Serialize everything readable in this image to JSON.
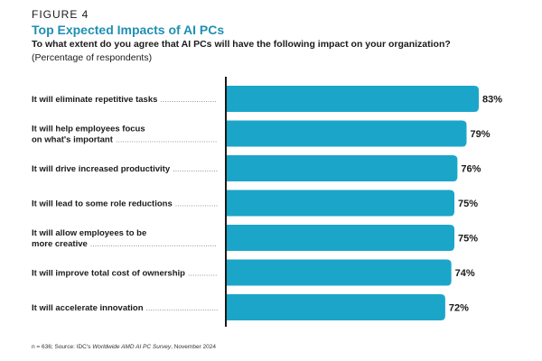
{
  "header": {
    "figure_label": "FIGURE 4",
    "title": "Top Expected Impacts of AI PCs",
    "subtitle": "To what extent do you agree that AI PCs will have the following impact on your organization?",
    "unit_note": "(Percentage of respondents)"
  },
  "footnote": {
    "prefix": "n = 636; Source: IDC's ",
    "survey": "Worldwide AMD AI PC Survey",
    "suffix": ", November 2024"
  },
  "colors": {
    "bar": "#1ba6c9",
    "axis": "#1a1a1a",
    "title": "#1f8fb3"
  },
  "chart_data": {
    "type": "bar",
    "orientation": "horizontal",
    "categories": [
      "It will eliminate repetitive tasks",
      "It will help employees focus on what's important",
      "It will drive increased productivity",
      "It will lead to some role reductions",
      "It will allow employees to be more creative",
      "It will improve total cost of ownership",
      "It will accelerate innovation"
    ],
    "category_lines": [
      [
        "It will eliminate repetitive tasks"
      ],
      [
        "It will help employees focus",
        "on what's important"
      ],
      [
        "It will drive increased productivity"
      ],
      [
        "It will lead to some role reductions"
      ],
      [
        "It will allow employees to be",
        "more creative"
      ],
      [
        "It will improve total cost of ownership"
      ],
      [
        "It will accelerate innovation"
      ]
    ],
    "values": [
      83,
      79,
      76,
      75,
      75,
      74,
      72
    ],
    "value_labels": [
      "83%",
      "79%",
      "76%",
      "75%",
      "75%",
      "74%",
      "72%"
    ],
    "title": "Top Expected Impacts of AI PCs",
    "xlim": [
      0,
      100
    ],
    "grid": false,
    "legend": "none"
  }
}
